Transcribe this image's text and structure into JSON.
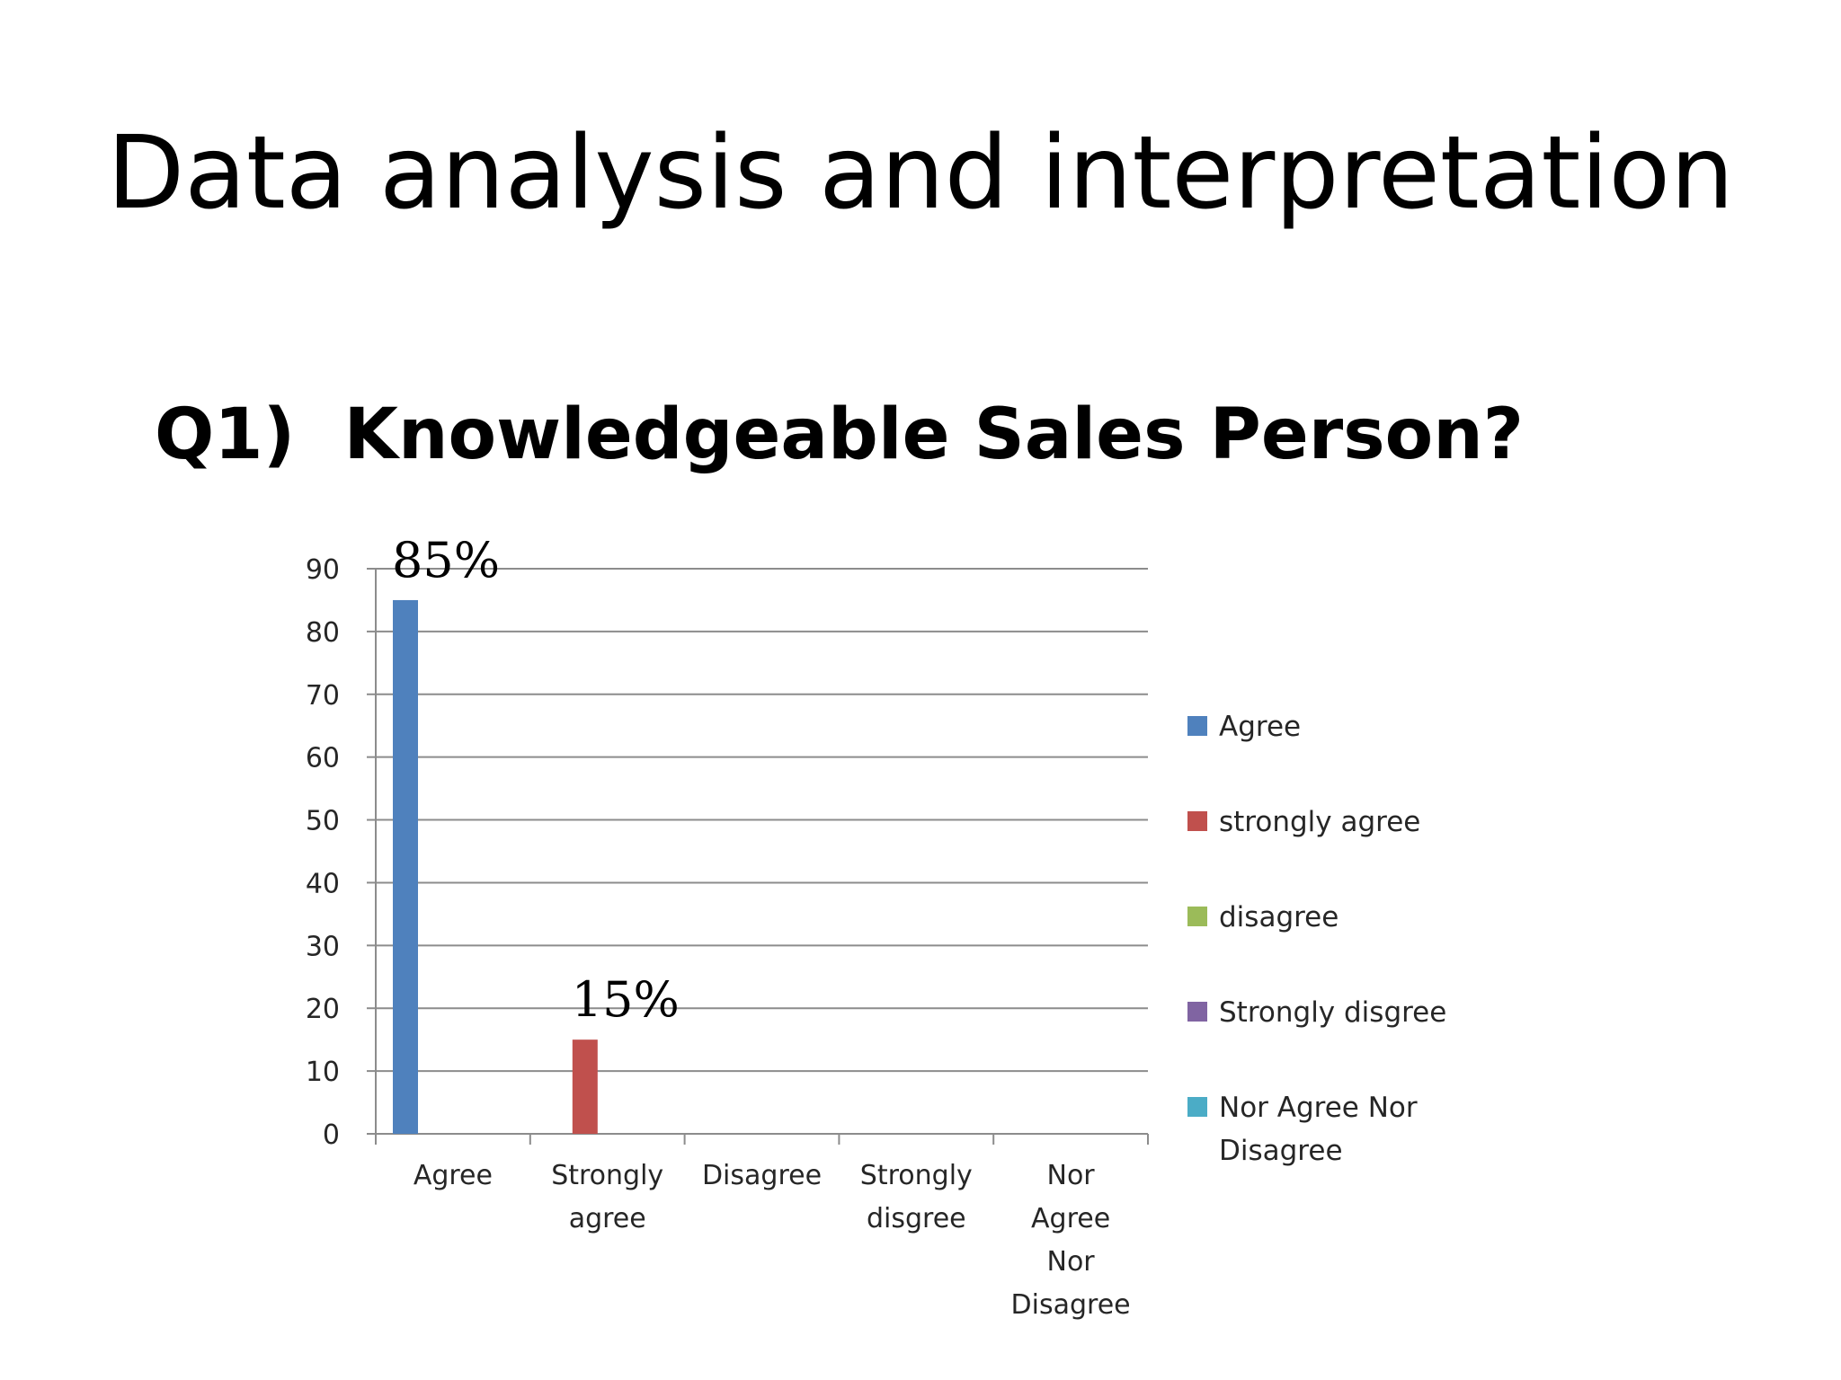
{
  "slide": {
    "title": "Data analysis and interpretation"
  },
  "chart_data": {
    "type": "bar",
    "title": "Q1)  Knowledgeable Sales Person?",
    "categories": [
      "Agree",
      "Strongly agree",
      "Disagree",
      "Strongly disgree",
      "Nor Agree Nor Disagree"
    ],
    "category_label_lines": [
      [
        "Agree"
      ],
      [
        "Strongly",
        "agree"
      ],
      [
        "Disagree"
      ],
      [
        "Strongly",
        "disgree"
      ],
      [
        "Nor",
        "Agree",
        "Nor",
        "Disagree"
      ]
    ],
    "series": [
      {
        "name": "Agree",
        "color": "#4f81bd",
        "values": [
          85,
          0,
          0,
          0,
          0
        ]
      },
      {
        "name": "strongly agree",
        "color": "#c0504d",
        "values": [
          0,
          15,
          0,
          0,
          0
        ]
      },
      {
        "name": "disagree",
        "color": "#9bbb59",
        "values": [
          0,
          0,
          0,
          0,
          0
        ]
      },
      {
        "name": "Strongly disgree",
        "color": "#8064a2",
        "values": [
          0,
          0,
          0,
          0,
          0
        ]
      },
      {
        "name": "Nor Agree Nor Disagree",
        "color": "#4bacc6",
        "values": [
          0,
          0,
          0,
          0,
          0
        ]
      }
    ],
    "legend_label_lines": [
      [
        "Agree"
      ],
      [
        "strongly agree"
      ],
      [
        "disagree"
      ],
      [
        "Strongly disgree"
      ],
      [
        "Nor Agree Nor",
        "Disagree"
      ]
    ],
    "data_labels": [
      {
        "category": "Agree",
        "series": "Agree",
        "text": "85%"
      },
      {
        "category": "Strongly agree",
        "series": "strongly agree",
        "text": "15%"
      }
    ],
    "yticks": [
      0,
      10,
      20,
      30,
      40,
      50,
      60,
      70,
      80,
      90
    ],
    "ylim": [
      0,
      90
    ],
    "xlabel": "",
    "ylabel": "",
    "grid": true,
    "legend": "right"
  }
}
